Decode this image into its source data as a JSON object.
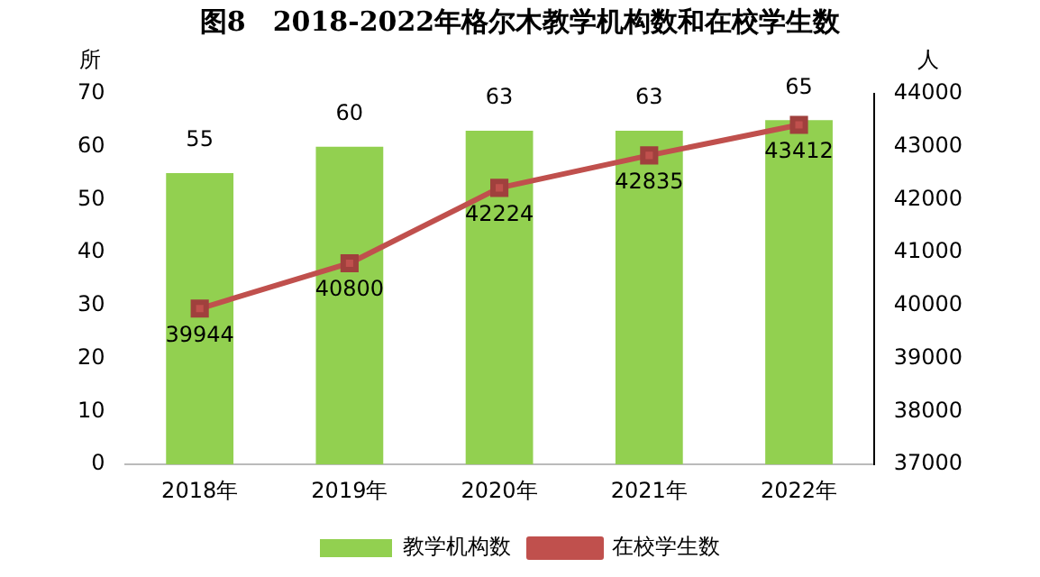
{
  "chart_data": {
    "type": "bar",
    "title": "图8　2018-2022年格尔木教学机构数和在校学生数",
    "ylabel": "所",
    "y2label": "人",
    "categories": [
      "2018年",
      "2019年",
      "2020年",
      "2021年",
      "2022年"
    ],
    "series": [
      {
        "name": "教学机构数",
        "color": "#92d050",
        "values": [
          55,
          60,
          63,
          63,
          65
        ]
      },
      {
        "name": "在校学生数",
        "type": "line",
        "axis": "y2",
        "color": "#c0504d",
        "values": [
          39944,
          40800,
          42224,
          42835,
          43412
        ]
      }
    ],
    "ylim": [
      0,
      70
    ],
    "yticks": [
      0,
      10,
      20,
      30,
      40,
      50,
      60,
      70
    ],
    "y2lim": [
      37000,
      44000
    ],
    "y2ticks": [
      37000,
      38000,
      39000,
      40000,
      41000,
      42000,
      43000,
      44000
    ],
    "grid": false,
    "legend": "bottom",
    "marker": "square",
    "line_style": "solid",
    "data_labels": true
  }
}
